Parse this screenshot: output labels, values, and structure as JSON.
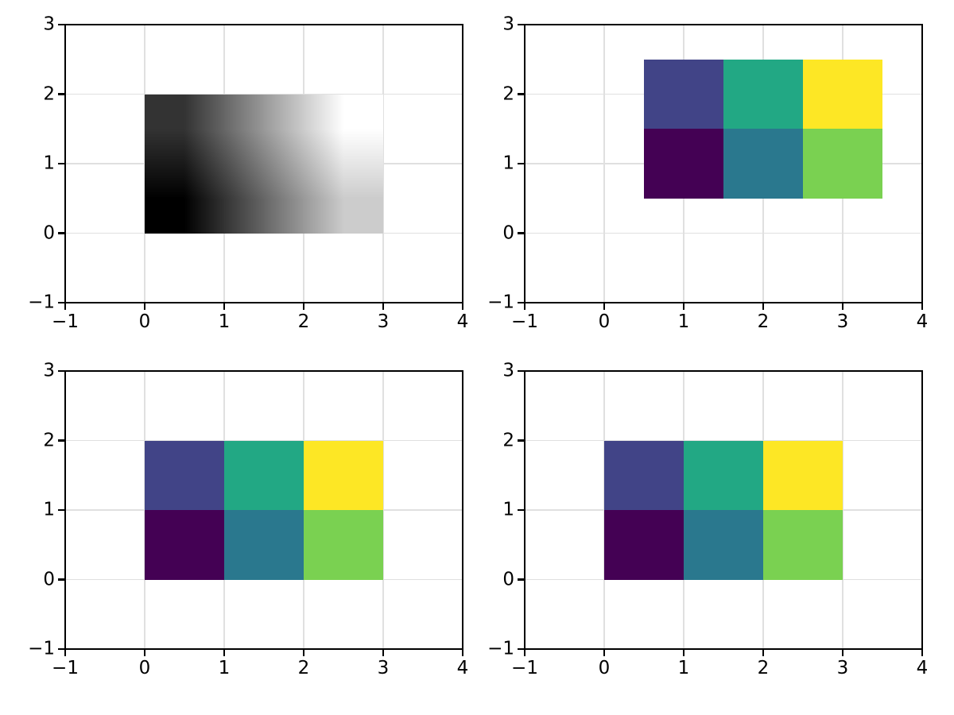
{
  "figure": {
    "background": "#ffffff",
    "grid_color": "#e0e0e0",
    "spine_color": "#000000",
    "tick_color": "#000000",
    "tick_label_color": "#000000",
    "layout": "2x2 subplot grid, no titles, no axis labels, no legend"
  },
  "chart_data": [
    {
      "id": "top-left",
      "type": "heatmap",
      "render": "interpolated",
      "cmap": "gray",
      "interpolation": "bilinear",
      "extent": [
        0,
        3,
        0,
        2
      ],
      "vmin": 0,
      "vmax": 5,
      "values_rows_bottom_to_top": [
        [
          0,
          2,
          4
        ],
        [
          1,
          3,
          5
        ]
      ],
      "xlim": [
        -1,
        4
      ],
      "ylim": [
        -1,
        3
      ],
      "xticks": [
        -1,
        0,
        1,
        2,
        3,
        4
      ],
      "xtick_labels": [
        "−1",
        "0",
        "1",
        "2",
        "3",
        "4"
      ],
      "yticks": [
        -1,
        0,
        1,
        2,
        3
      ],
      "ytick_labels": [
        "−1",
        "0",
        "1",
        "2",
        "3"
      ],
      "grid": true
    },
    {
      "id": "top-right",
      "type": "heatmap",
      "render": "cells",
      "cmap": "viridis",
      "interpolation": "nearest",
      "extent": [
        0.5,
        3.5,
        0.5,
        2.5
      ],
      "vmin": 0,
      "vmax": 5,
      "values_rows_bottom_to_top": [
        [
          0,
          2,
          4
        ],
        [
          1,
          3,
          5
        ]
      ],
      "cell_colors_rows_bottom_to_top": [
        [
          "#440154",
          "#2a788e",
          "#7ad151"
        ],
        [
          "#414487",
          "#22a884",
          "#fde725"
        ]
      ],
      "xlim": [
        -1,
        4
      ],
      "ylim": [
        -1,
        3
      ],
      "xticks": [
        -1,
        0,
        1,
        2,
        3,
        4
      ],
      "xtick_labels": [
        "−1",
        "0",
        "1",
        "2",
        "3",
        "4"
      ],
      "yticks": [
        -1,
        0,
        1,
        2,
        3
      ],
      "ytick_labels": [
        "−1",
        "0",
        "1",
        "2",
        "3"
      ],
      "grid": true
    },
    {
      "id": "bottom-left",
      "type": "heatmap",
      "render": "cells",
      "cmap": "viridis",
      "interpolation": "nearest",
      "extent": [
        0,
        3,
        0,
        2
      ],
      "vmin": 0,
      "vmax": 5,
      "values_rows_bottom_to_top": [
        [
          0,
          2,
          4
        ],
        [
          1,
          3,
          5
        ]
      ],
      "cell_colors_rows_bottom_to_top": [
        [
          "#440154",
          "#2a788e",
          "#7ad151"
        ],
        [
          "#414487",
          "#22a884",
          "#fde725"
        ]
      ],
      "xlim": [
        -1,
        4
      ],
      "ylim": [
        -1,
        3
      ],
      "xticks": [
        -1,
        0,
        1,
        2,
        3,
        4
      ],
      "xtick_labels": [
        "−1",
        "0",
        "1",
        "2",
        "3",
        "4"
      ],
      "yticks": [
        -1,
        0,
        1,
        2,
        3
      ],
      "ytick_labels": [
        "−1",
        "0",
        "1",
        "2",
        "3"
      ],
      "grid": true
    },
    {
      "id": "bottom-right",
      "type": "heatmap",
      "render": "cells",
      "cmap": "viridis",
      "interpolation": "nearest",
      "extent": [
        0,
        3,
        0,
        2
      ],
      "vmin": 0,
      "vmax": 5,
      "values_rows_bottom_to_top": [
        [
          0,
          2,
          4
        ],
        [
          1,
          3,
          5
        ]
      ],
      "cell_colors_rows_bottom_to_top": [
        [
          "#440154",
          "#2a788e",
          "#7ad151"
        ],
        [
          "#414487",
          "#22a884",
          "#fde725"
        ]
      ],
      "xlim": [
        -1,
        4
      ],
      "ylim": [
        -1,
        3
      ],
      "xticks": [
        -1,
        0,
        1,
        2,
        3,
        4
      ],
      "xtick_labels": [
        "−1",
        "0",
        "1",
        "2",
        "3",
        "4"
      ],
      "yticks": [
        -1,
        0,
        1,
        2,
        3
      ],
      "ytick_labels": [
        "−1",
        "0",
        "1",
        "2",
        "3"
      ],
      "grid": true
    }
  ]
}
